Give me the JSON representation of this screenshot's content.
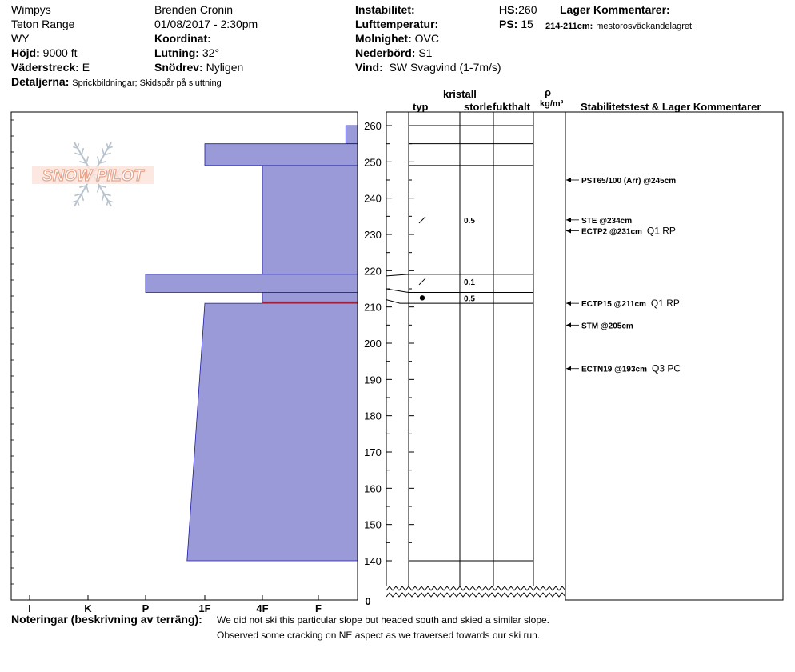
{
  "header": {
    "location": "Wimpys",
    "range": "Teton Range",
    "state": "WY",
    "height_label": "Höjd:",
    "height_value": "9000 ft",
    "aspect_label": "Väderstreck:",
    "aspect_value": "E",
    "details_label": "Detaljerna:",
    "details_value": "Sprickbildningar;  Skidspår på sluttning",
    "observer": "Brenden Cronin",
    "datetime": "01/08/2017 - 2:30pm",
    "coord_label": "Koordinat:",
    "slope_label": "Lutning:",
    "slope_value": "32°",
    "drift_label": "Snödrev:",
    "drift_value": "Nyligen",
    "instability_label": "Instabilitet:",
    "airtemp_label": "Lufttemperatur:",
    "sky_label": "Molnighet:",
    "sky_value": "OVC",
    "precip_label": "Nederbörd:",
    "precip_value": "S1",
    "wind_label": "Vind:",
    "wind_value": "SW  Svagvind (1-7m/s)",
    "hs_label": "HS:",
    "hs_value": "260",
    "ps_label": "PS:",
    "ps_value": "15",
    "layer_comments_label": "Lager Kommentarer:",
    "layer_comment_range": "214-211cm:",
    "layer_comment_text": "mestorosväckandelagret"
  },
  "columns": {
    "crystal": "kristall",
    "type": "typ",
    "size": "storlek",
    "moisture": "fukthalt",
    "rho": "ρ",
    "density_unit": "kg/m³",
    "stability": "Stabilitetstest & Lager Kommentarer"
  },
  "logo": {
    "text": "SNOW PILOT",
    "color": "#e6a48c"
  },
  "colors": {
    "hardness_fill": "#9b9ad8",
    "hardness_stroke": "#1a1aa0",
    "weak_layer": "#a0203c"
  },
  "notes": {
    "label": "Noteringar (beskrivning av terräng):",
    "line1": "We did not ski this particular slope but headed south and skied a similar slope.",
    "line2": "Observed some cracking on NE aspect as we traversed towards our ski run."
  },
  "chart_data": {
    "type": "snow_profile",
    "y_axis": {
      "min": 140,
      "max": 260,
      "ticks": [
        260,
        250,
        240,
        230,
        220,
        210,
        200,
        190,
        180,
        170,
        160,
        150,
        140
      ],
      "bottom_label": "0"
    },
    "hardness_axis": {
      "labels": [
        "I",
        "K",
        "P",
        "1F",
        "4F",
        "F"
      ]
    },
    "hardness_layers": [
      {
        "top": 260,
        "bottom": 255,
        "hardness_index": 5.7
      },
      {
        "top": 255,
        "bottom": 249,
        "hardness_index": 3.0
      },
      {
        "top": 249,
        "bottom": 219,
        "hardness_index": 4.0
      },
      {
        "top": 219,
        "bottom": 214,
        "hardness_index": 2.0
      },
      {
        "top": 214,
        "bottom": 211,
        "hardness_index": 4.0
      },
      {
        "top": 211,
        "bottom": 140,
        "hardness_index": 3.0,
        "hardness_index_bottom": 2.7
      }
    ],
    "weak_layer": {
      "top": 214,
      "bottom": 211
    },
    "layer_boundaries": [
      260,
      255,
      249,
      219,
      214,
      211,
      140
    ],
    "grain_rows": [
      {
        "depth": 234,
        "type": "decomposing",
        "size": "0.5"
      },
      {
        "depth": 217,
        "type": "decomposing",
        "size": "0.1"
      },
      {
        "depth": 212.5,
        "type": "rounded",
        "size": "0.5"
      }
    ],
    "stability_tests": [
      {
        "depth": 245,
        "label": "PST65/100 (Arr) @245cm",
        "extra": ""
      },
      {
        "depth": 234,
        "label": "STE @234cm",
        "extra": ""
      },
      {
        "depth": 231,
        "label": "ECTP2 @231cm",
        "extra": "Q1 RP"
      },
      {
        "depth": 211,
        "label": "ECTP15 @211cm",
        "extra": "Q1 RP"
      },
      {
        "depth": 205,
        "label": "STM @205cm",
        "extra": ""
      },
      {
        "depth": 193,
        "label": "ECTN19 @193cm",
        "extra": "Q3 PC"
      }
    ]
  }
}
